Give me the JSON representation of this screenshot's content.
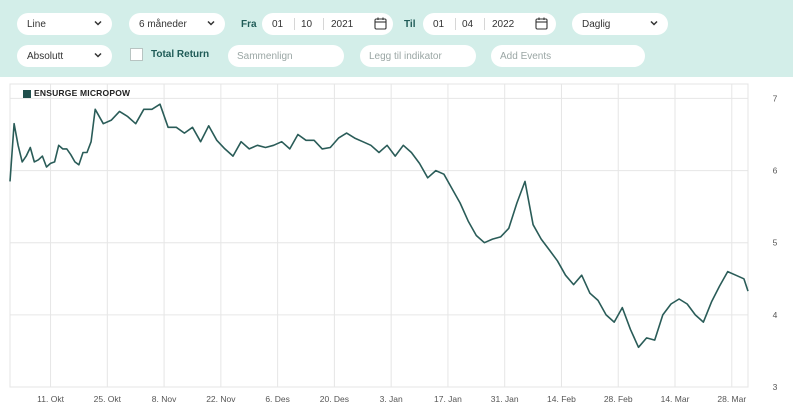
{
  "toolbar": {
    "chart_type": "Line",
    "period": "6 måneder",
    "from_label": "Fra",
    "from_day": "01",
    "from_month": "10",
    "from_year": "2021",
    "to_label": "Til",
    "to_day": "01",
    "to_month": "04",
    "to_year": "2022",
    "interval": "Daglig",
    "scale": "Absolutt",
    "total_return_label": "Total Return",
    "total_return_checked": false,
    "compare_placeholder": "Sammenlign",
    "indicator_placeholder": "Legg til indikator",
    "events_placeholder": "Add Events"
  },
  "colors": {
    "toolbar_bg": "#d3eee9",
    "line": "#2a5c58",
    "accent_text": "#1f5b57"
  },
  "chart_data": {
    "type": "line",
    "legend": "ENSURGE MICROPOW",
    "legend_placement": "top-left",
    "y_axis_side": "right",
    "ylim": [
      3,
      7.2
    ],
    "yticks": [
      "7",
      "6",
      "5",
      "4",
      "3"
    ],
    "xlim": [
      "2021-10-01",
      "2022-04-01"
    ],
    "xticks": [
      {
        "date": "2021-10-11",
        "label": "11. Okt"
      },
      {
        "date": "2021-10-25",
        "label": "25. Okt"
      },
      {
        "date": "2021-11-08",
        "label": "8. Nov"
      },
      {
        "date": "2021-11-22",
        "label": "22. Nov"
      },
      {
        "date": "2021-12-06",
        "label": "6. Des"
      },
      {
        "date": "2021-12-20",
        "label": "20. Des"
      },
      {
        "date": "2022-01-03",
        "label": "3. Jan"
      },
      {
        "date": "2022-01-17",
        "label": "17. Jan"
      },
      {
        "date": "2022-01-31",
        "label": "31. Jan"
      },
      {
        "date": "2022-02-14",
        "label": "14. Feb"
      },
      {
        "date": "2022-02-28",
        "label": "28. Feb"
      },
      {
        "date": "2022-03-14",
        "label": "14. Mar"
      },
      {
        "date": "2022-03-28",
        "label": "28. Mar"
      }
    ],
    "grid": true,
    "series": [
      {
        "name": "ENSURGE MICROPOW",
        "points": [
          [
            "2021-10-01",
            5.85
          ],
          [
            "2021-10-02",
            6.65
          ],
          [
            "2021-10-03",
            6.35
          ],
          [
            "2021-10-04",
            6.12
          ],
          [
            "2021-10-05",
            6.2
          ],
          [
            "2021-10-06",
            6.32
          ],
          [
            "2021-10-07",
            6.12
          ],
          [
            "2021-10-08",
            6.15
          ],
          [
            "2021-10-09",
            6.2
          ],
          [
            "2021-10-10",
            6.05
          ],
          [
            "2021-10-11",
            6.1
          ],
          [
            "2021-10-12",
            6.12
          ],
          [
            "2021-10-13",
            6.35
          ],
          [
            "2021-10-14",
            6.3
          ],
          [
            "2021-10-15",
            6.3
          ],
          [
            "2021-10-16",
            6.22
          ],
          [
            "2021-10-17",
            6.12
          ],
          [
            "2021-10-18",
            6.08
          ],
          [
            "2021-10-19",
            6.25
          ],
          [
            "2021-10-20",
            6.25
          ],
          [
            "2021-10-21",
            6.4
          ],
          [
            "2021-10-22",
            6.85
          ],
          [
            "2021-10-24",
            6.65
          ],
          [
            "2021-10-26",
            6.7
          ],
          [
            "2021-10-28",
            6.82
          ],
          [
            "2021-10-30",
            6.75
          ],
          [
            "2021-11-01",
            6.65
          ],
          [
            "2021-11-03",
            6.85
          ],
          [
            "2021-11-05",
            6.85
          ],
          [
            "2021-11-07",
            6.92
          ],
          [
            "2021-11-09",
            6.6
          ],
          [
            "2021-11-11",
            6.6
          ],
          [
            "2021-11-13",
            6.52
          ],
          [
            "2021-11-15",
            6.6
          ],
          [
            "2021-11-17",
            6.4
          ],
          [
            "2021-11-19",
            6.62
          ],
          [
            "2021-11-21",
            6.42
          ],
          [
            "2021-11-23",
            6.3
          ],
          [
            "2021-11-25",
            6.2
          ],
          [
            "2021-11-27",
            6.4
          ],
          [
            "2021-11-29",
            6.3
          ],
          [
            "2021-12-01",
            6.35
          ],
          [
            "2021-12-03",
            6.32
          ],
          [
            "2021-12-05",
            6.35
          ],
          [
            "2021-12-07",
            6.4
          ],
          [
            "2021-12-09",
            6.3
          ],
          [
            "2021-12-11",
            6.5
          ],
          [
            "2021-12-13",
            6.42
          ],
          [
            "2021-12-15",
            6.42
          ],
          [
            "2021-12-17",
            6.3
          ],
          [
            "2021-12-19",
            6.32
          ],
          [
            "2021-12-21",
            6.45
          ],
          [
            "2021-12-23",
            6.52
          ],
          [
            "2021-12-25",
            6.45
          ],
          [
            "2021-12-27",
            6.4
          ],
          [
            "2021-12-29",
            6.35
          ],
          [
            "2021-12-31",
            6.25
          ],
          [
            "2022-01-02",
            6.35
          ],
          [
            "2022-01-04",
            6.2
          ],
          [
            "2022-01-06",
            6.35
          ],
          [
            "2022-01-08",
            6.25
          ],
          [
            "2022-01-10",
            6.1
          ],
          [
            "2022-01-12",
            5.9
          ],
          [
            "2022-01-14",
            6.0
          ],
          [
            "2022-01-16",
            5.95
          ],
          [
            "2022-01-18",
            5.75
          ],
          [
            "2022-01-20",
            5.55
          ],
          [
            "2022-01-22",
            5.3
          ],
          [
            "2022-01-24",
            5.1
          ],
          [
            "2022-01-26",
            5.0
          ],
          [
            "2022-01-28",
            5.05
          ],
          [
            "2022-01-30",
            5.08
          ],
          [
            "2022-02-01",
            5.2
          ],
          [
            "2022-02-03",
            5.55
          ],
          [
            "2022-02-05",
            5.85
          ],
          [
            "2022-02-07",
            5.25
          ],
          [
            "2022-02-09",
            5.05
          ],
          [
            "2022-02-11",
            4.9
          ],
          [
            "2022-02-13",
            4.75
          ],
          [
            "2022-02-15",
            4.55
          ],
          [
            "2022-02-17",
            4.42
          ],
          [
            "2022-02-19",
            4.55
          ],
          [
            "2022-02-21",
            4.3
          ],
          [
            "2022-02-23",
            4.2
          ],
          [
            "2022-02-25",
            4.0
          ],
          [
            "2022-02-27",
            3.9
          ],
          [
            "2022-03-01",
            4.1
          ],
          [
            "2022-03-03",
            3.8
          ],
          [
            "2022-03-05",
            3.55
          ],
          [
            "2022-03-07",
            3.68
          ],
          [
            "2022-03-09",
            3.65
          ],
          [
            "2022-03-11",
            4.0
          ],
          [
            "2022-03-13",
            4.15
          ],
          [
            "2022-03-15",
            4.22
          ],
          [
            "2022-03-17",
            4.15
          ],
          [
            "2022-03-19",
            4.0
          ],
          [
            "2022-03-21",
            3.9
          ],
          [
            "2022-03-23",
            4.18
          ],
          [
            "2022-03-25",
            4.4
          ],
          [
            "2022-03-27",
            4.6
          ],
          [
            "2022-03-29",
            4.55
          ],
          [
            "2022-03-31",
            4.5
          ],
          [
            "2022-04-01",
            4.33
          ]
        ]
      }
    ]
  }
}
